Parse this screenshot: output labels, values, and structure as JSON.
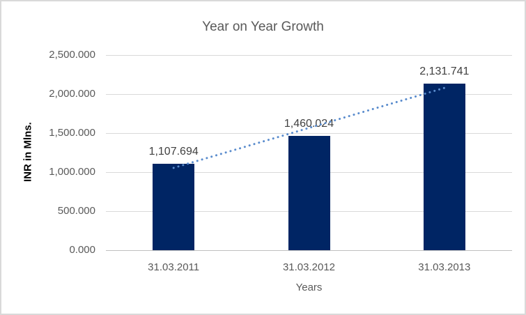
{
  "chart_data": {
    "type": "bar",
    "title": "Year on Year Growth",
    "xlabel": "Years",
    "ylabel": "INR in Mlns.",
    "categories": [
      "31.03.2011",
      "31.03.2012",
      "31.03.2013"
    ],
    "values": [
      1107.694,
      1460.024,
      2131.741
    ],
    "value_labels": [
      "1,107.694",
      "1,460.024",
      "2,131.741"
    ],
    "ytick_labels": [
      "2,500.000",
      "2,000.000",
      "1,500.000",
      "1,000.000",
      "500.000",
      "0.000"
    ],
    "ytick_values": [
      2500,
      2000,
      1500,
      1000,
      500,
      0
    ],
    "ylim": [
      0,
      2500
    ],
    "grid": true,
    "legend": false,
    "colors": {
      "bar": "#002564",
      "trendline": "#5a8ccd",
      "gridline": "#d9d9d9",
      "axis_line": "#bfbfbf",
      "text": "#595959",
      "data_label_text": "#404040",
      "border": "#d9d9d9"
    },
    "trendline": {
      "type": "linear",
      "style": "dotted"
    }
  }
}
